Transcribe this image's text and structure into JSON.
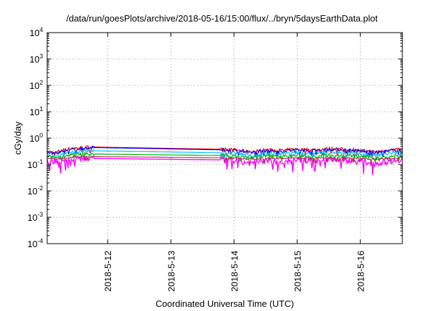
{
  "chart_data": {
    "type": "line",
    "title": "/data/run/goesPlots/archive/2018-05-16/15:00/flux/../bryn/5daysEarthData.plot",
    "xlabel": "Coordinated Universal Time (UTC)",
    "ylabel": "cGy/day",
    "y_scale": "log",
    "ylim": [
      0.0001,
      10000
    ],
    "y_ticks": [
      {
        "value": 0.0001,
        "base": "10",
        "exp": "-4"
      },
      {
        "value": 0.001,
        "base": "10",
        "exp": "-3"
      },
      {
        "value": 0.01,
        "base": "10",
        "exp": "-2"
      },
      {
        "value": 0.1,
        "base": "10",
        "exp": "-1"
      },
      {
        "value": 1,
        "base": "10",
        "exp": "0"
      },
      {
        "value": 10,
        "base": "10",
        "exp": "1"
      },
      {
        "value": 100,
        "base": "10",
        "exp": "2"
      },
      {
        "value": 1000,
        "base": "10",
        "exp": "3"
      },
      {
        "value": 10000,
        "base": "10",
        "exp": "4"
      }
    ],
    "x_ticks": [
      "2018-5-12",
      "2018-5-13",
      "2018-5-14",
      "2018-5-15",
      "2018-5-16"
    ],
    "xlim": [
      "2018-05-11 01:00",
      "2018-05-16 16:00"
    ],
    "grid": true,
    "legend": "none",
    "gap": {
      "start": "2018-05-11 19:00",
      "end": "2018-05-13 19:00"
    },
    "series": [
      {
        "color": "#ff0000",
        "x": [
          "2018-05-11 01:00",
          "2018-05-11 04:00",
          "2018-05-11 08:00",
          "2018-05-11 12:00",
          "2018-05-11 16:00",
          "2018-05-11 19:00",
          "2018-05-13 19:00",
          "2018-05-14 01:00",
          "2018-05-14 06:00",
          "2018-05-14 12:00",
          "2018-05-14 18:00",
          "2018-05-15 00:00",
          "2018-05-15 06:00",
          "2018-05-15 12:00",
          "2018-05-15 18:00",
          "2018-05-16 00:00",
          "2018-05-16 06:00",
          "2018-05-16 12:00",
          "2018-05-16 16:00"
        ],
        "y": [
          0.32,
          0.28,
          0.38,
          0.42,
          0.45,
          0.46,
          0.38,
          0.36,
          0.3,
          0.36,
          0.34,
          0.38,
          0.36,
          0.4,
          0.38,
          0.34,
          0.3,
          0.36,
          0.4
        ]
      },
      {
        "color": "#0000ff",
        "x": [
          "2018-05-11 01:00",
          "2018-05-11 04:00",
          "2018-05-11 08:00",
          "2018-05-11 12:00",
          "2018-05-11 16:00",
          "2018-05-11 19:00",
          "2018-05-13 19:00",
          "2018-05-14 01:00",
          "2018-05-14 06:00",
          "2018-05-14 12:00",
          "2018-05-14 18:00",
          "2018-05-15 00:00",
          "2018-05-15 06:00",
          "2018-05-15 12:00",
          "2018-05-15 18:00",
          "2018-05-16 00:00",
          "2018-05-16 06:00",
          "2018-05-16 12:00",
          "2018-05-16 16:00"
        ],
        "y": [
          0.3,
          0.26,
          0.35,
          0.4,
          0.42,
          0.44,
          0.36,
          0.34,
          0.28,
          0.34,
          0.32,
          0.36,
          0.34,
          0.38,
          0.36,
          0.32,
          0.28,
          0.34,
          0.38
        ]
      },
      {
        "color": "#00bfff",
        "x": [
          "2018-05-11 01:00",
          "2018-05-11 04:00",
          "2018-05-11 08:00",
          "2018-05-11 12:00",
          "2018-05-11 16:00",
          "2018-05-11 19:00",
          "2018-05-13 19:00",
          "2018-05-14 01:00",
          "2018-05-14 06:00",
          "2018-05-14 12:00",
          "2018-05-14 18:00",
          "2018-05-15 00:00",
          "2018-05-15 06:00",
          "2018-05-15 12:00",
          "2018-05-15 18:00",
          "2018-05-16 00:00",
          "2018-05-16 06:00",
          "2018-05-16 12:00",
          "2018-05-16 16:00"
        ],
        "y": [
          0.24,
          0.2,
          0.27,
          0.3,
          0.32,
          0.33,
          0.28,
          0.27,
          0.22,
          0.27,
          0.25,
          0.28,
          0.27,
          0.3,
          0.28,
          0.25,
          0.22,
          0.27,
          0.3
        ]
      },
      {
        "color": "#00b000",
        "x": [
          "2018-05-11 01:00",
          "2018-05-11 04:00",
          "2018-05-11 08:00",
          "2018-05-11 12:00",
          "2018-05-11 16:00",
          "2018-05-11 19:00",
          "2018-05-13 19:00",
          "2018-05-14 01:00",
          "2018-05-14 06:00",
          "2018-05-14 12:00",
          "2018-05-14 18:00",
          "2018-05-15 00:00",
          "2018-05-15 06:00",
          "2018-05-15 12:00",
          "2018-05-15 18:00",
          "2018-05-16 00:00",
          "2018-05-16 06:00",
          "2018-05-16 12:00",
          "2018-05-16 16:00"
        ],
        "y": [
          0.2,
          0.18,
          0.22,
          0.24,
          0.25,
          0.25,
          0.22,
          0.21,
          0.18,
          0.21,
          0.2,
          0.22,
          0.21,
          0.23,
          0.22,
          0.2,
          0.18,
          0.21,
          0.23
        ]
      },
      {
        "color": "#ff00ff",
        "x": [
          "2018-05-11 01:00",
          "2018-05-11 04:00",
          "2018-05-11 08:00",
          "2018-05-11 12:00",
          "2018-05-11 16:00",
          "2018-05-11 19:00",
          "2018-05-13 19:00",
          "2018-05-14 01:00",
          "2018-05-14 06:00",
          "2018-05-14 12:00",
          "2018-05-14 18:00",
          "2018-05-15 00:00",
          "2018-05-15 06:00",
          "2018-05-15 12:00",
          "2018-05-15 18:00",
          "2018-05-16 00:00",
          "2018-05-16 06:00",
          "2018-05-16 12:00",
          "2018-05-16 16:00"
        ],
        "y": [
          0.14,
          0.12,
          0.15,
          0.16,
          0.17,
          0.17,
          0.15,
          0.14,
          0.11,
          0.14,
          0.13,
          0.15,
          0.14,
          0.16,
          0.15,
          0.13,
          0.11,
          0.14,
          0.16
        ]
      },
      {
        "color": "#b03060",
        "x": [
          "2018-05-11 01:00",
          "2018-05-11 04:00",
          "2018-05-11 08:00",
          "2018-05-11 12:00",
          "2018-05-11 16:00",
          "2018-05-11 19:00",
          "2018-05-13 19:00",
          "2018-05-14 01:00",
          "2018-05-14 06:00",
          "2018-05-14 12:00",
          "2018-05-14 18:00",
          "2018-05-15 00:00",
          "2018-05-15 06:00",
          "2018-05-15 12:00",
          "2018-05-15 18:00",
          "2018-05-16 00:00",
          "2018-05-16 06:00",
          "2018-05-16 12:00",
          "2018-05-16 16:00"
        ],
        "y": [
          0.17,
          0.16,
          0.18,
          0.19,
          0.2,
          0.2,
          0.18,
          0.17,
          0.16,
          0.17,
          0.17,
          0.18,
          0.17,
          0.18,
          0.18,
          0.17,
          0.16,
          0.17,
          0.18
        ]
      }
    ]
  }
}
